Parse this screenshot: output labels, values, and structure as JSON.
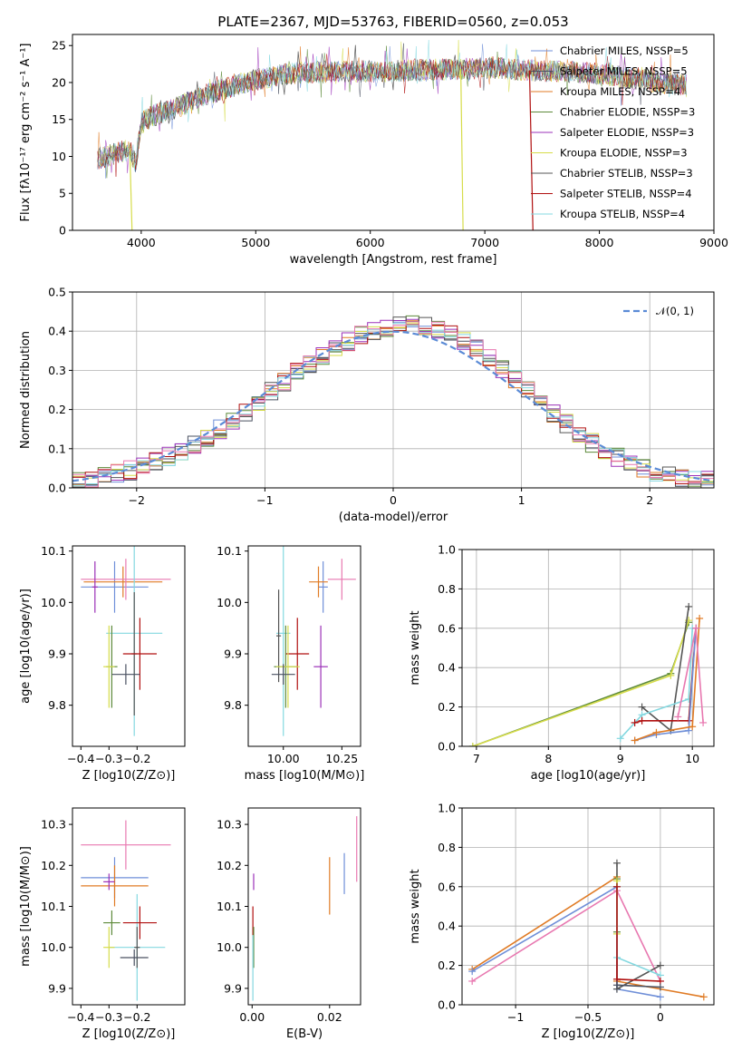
{
  "title": "PLATE=2367, MJD=53763, FIBERID=0560, z=0.053",
  "colors": {
    "Chabrier MILES": "#6f8fd8",
    "Salpeter MILES": "#4a5060",
    "Kroupa MILES": "#e07b25",
    "Chabrier ELODIE": "#5d8a3a",
    "Salpeter ELODIE": "#9b30b8",
    "Kroupa ELODIE": "#d6dc4a",
    "Chabrier STELIB": "#555555",
    "Salpeter STELIB": "#b01010",
    "Kroupa STELIB": "#84d8e0",
    "pink": "#e878b0",
    "normal_curve": "#5b8bd6"
  },
  "chart_data": [
    {
      "id": "spectrum",
      "type": "line",
      "title": "PLATE=2367, MJD=53763, FIBERID=0560, z=0.053",
      "xlabel": "wavelength [Angstrom, rest frame]",
      "ylabel": "Flux [fλ10⁻¹⁷ erg cm⁻² s⁻¹ A⁻¹]",
      "xlim": [
        3400,
        9000
      ],
      "ylim": [
        0,
        26.5
      ],
      "xticks": [
        4000,
        5000,
        6000,
        7000,
        8000,
        9000
      ],
      "yticks": [
        0,
        5,
        10,
        15,
        20,
        25
      ],
      "legend_loc": "upper right",
      "series": [
        {
          "name": "Chabrier MILES, N_SSP=5",
          "legend": "Chabrier MILES, NSSP=5"
        },
        {
          "name": "Salpeter MILES, N_SSP=5",
          "legend": "Salpeter MILES, NSSP=5"
        },
        {
          "name": "Kroupa MILES, N_SSP=4",
          "legend": "Kroupa MILES, NSSP=4"
        },
        {
          "name": "Chabrier ELODIE, N_SSP=3",
          "legend": "Chabrier ELODIE, NSSP=3"
        },
        {
          "name": "Salpeter ELODIE, N_SSP=3",
          "legend": "Salpeter ELODIE, NSSP=3"
        },
        {
          "name": "Kroupa ELODIE, N_SSP=3",
          "legend": "Kroupa ELODIE, NSSP=3"
        },
        {
          "name": "Chabrier STELIB, N_SSP=3",
          "legend": "Chabrier STELIB, NSSP=3"
        },
        {
          "name": "Salpeter STELIB, N_SSP=4",
          "legend": "Salpeter STELIB, NSSP=4"
        },
        {
          "name": "Kroupa STELIB, N_SSP=4",
          "legend": "Kroupa STELIB, NSSP=4"
        }
      ],
      "continuum": {
        "x": [
          3600,
          3700,
          3800,
          3900,
          3950,
          4000,
          4100,
          4200,
          4300,
          4500,
          4700,
          4900,
          5100,
          5300,
          5500,
          5700,
          5900,
          6100,
          6300,
          6500,
          6700,
          6900,
          7100,
          7300,
          7500,
          7700,
          7900,
          8100,
          8300,
          8500,
          8700
        ],
        "y": [
          9.5,
          10.0,
          10.5,
          11.0,
          9.0,
          14.5,
          15.5,
          16.0,
          16.5,
          18.0,
          19.0,
          20.0,
          20.7,
          21.2,
          21.4,
          21.5,
          21.5,
          21.5,
          21.6,
          21.7,
          21.8,
          21.9,
          22.0,
          21.7,
          21.6,
          21.5,
          21.3,
          21.0,
          20.5,
          20.0,
          19.7
        ]
      },
      "features": [
        {
          "series": "Kroupa ELODIE, N_SSP=3",
          "x_start": 3900,
          "x_end": 3920,
          "y": 0
        },
        {
          "series": "Kroupa ELODIE, N_SSP=3",
          "x_start": 6790,
          "x_end": 6810,
          "y": 0
        },
        {
          "series": "Salpeter STELIB, N_SSP=4",
          "x_start": 7390,
          "x_end": 7420,
          "y": 0
        }
      ]
    },
    {
      "id": "residuals",
      "type": "line",
      "xlabel": "(data-model)/error",
      "ylabel": "Normed distribution",
      "xlim": [
        -2.5,
        2.5
      ],
      "ylim": [
        0,
        0.5
      ],
      "xticks": [
        -2,
        -1,
        0,
        1,
        2
      ],
      "yticks": [
        0.0,
        0.1,
        0.2,
        0.3,
        0.4,
        0.5
      ],
      "grid": true,
      "legend_loc": "upper right",
      "normal_curve": {
        "name": "N(0,1)",
        "mean": 0,
        "sigma": 1
      },
      "bins": [
        -2.5,
        -2.4,
        -2.3,
        -2.2,
        -2.1,
        -2.0,
        -1.9,
        -1.8,
        -1.7,
        -1.6,
        -1.5,
        -1.4,
        -1.3,
        -1.2,
        -1.1,
        -1.0,
        -0.9,
        -0.8,
        -0.7,
        -0.6,
        -0.5,
        -0.4,
        -0.3,
        -0.2,
        -0.1,
        0.0,
        0.1,
        0.2,
        0.3,
        0.4,
        0.5,
        0.6,
        0.7,
        0.8,
        0.9,
        1.0,
        1.1,
        1.2,
        1.3,
        1.4,
        1.5,
        1.6,
        1.7,
        1.8,
        1.9,
        2.0,
        2.1,
        2.2,
        2.3,
        2.4,
        2.5
      ],
      "histogram_envelope": [
        0.02,
        0.025,
        0.03,
        0.035,
        0.045,
        0.055,
        0.065,
        0.08,
        0.095,
        0.11,
        0.13,
        0.15,
        0.17,
        0.195,
        0.22,
        0.245,
        0.27,
        0.295,
        0.315,
        0.34,
        0.36,
        0.375,
        0.39,
        0.4,
        0.41,
        0.42,
        0.42,
        0.415,
        0.405,
        0.395,
        0.375,
        0.355,
        0.33,
        0.305,
        0.28,
        0.25,
        0.22,
        0.19,
        0.165,
        0.14,
        0.115,
        0.095,
        0.08,
        0.065,
        0.05,
        0.04,
        0.035,
        0.028,
        0.022,
        0.018
      ]
    },
    {
      "id": "age-vs-Z",
      "type": "scatter",
      "xlabel": "Z [log10(Z/Z⊙)]",
      "ylabel": "age [log10(age/yr)]",
      "xlim": [
        -0.43,
        -0.03
      ],
      "ylim": [
        9.72,
        10.11
      ],
      "xticks": [
        -0.4,
        -0.3,
        -0.2
      ],
      "yticks": [
        9.8,
        9.9,
        10.0,
        10.1
      ],
      "points": [
        {
          "series": "Chabrier MILES, N_SSP=5",
          "x": -0.28,
          "y": 10.03,
          "xerr": 0.12,
          "yerr": 0.05
        },
        {
          "series": "Kroupa MILES, N_SSP=4",
          "x": -0.25,
          "y": 10.04,
          "xerr": 0.14,
          "yerr": 0.03
        },
        {
          "series": "pink",
          "x": -0.24,
          "y": 10.045,
          "xerr": 0.16,
          "yerr": 0.04
        },
        {
          "series": "Salpeter ELODIE, N_SSP=3",
          "x": -0.35,
          "y": 10.03,
          "xerr": 0.01,
          "yerr": 0.05
        },
        {
          "series": "Kroupa STELIB, N_SSP=4",
          "x": -0.21,
          "y": 9.94,
          "xerr": 0.1,
          "yerr": 0.2
        },
        {
          "series": "Chabrier STELIB, N_SSP=3",
          "x": -0.21,
          "y": 9.9,
          "xerr": 0.01,
          "yerr": 0.12
        },
        {
          "series": "Salpeter STELIB, N_SSP=4",
          "x": -0.19,
          "y": 9.9,
          "xerr": 0.06,
          "yerr": 0.07
        },
        {
          "series": "Chabrier ELODIE, N_SSP=3",
          "x": -0.29,
          "y": 9.875,
          "xerr": 0.02,
          "yerr": 0.08
        },
        {
          "series": "Kroupa ELODIE, N_SSP=3",
          "x": -0.3,
          "y": 9.875,
          "xerr": 0.02,
          "yerr": 0.08
        },
        {
          "series": "Salpeter MILES, N_SSP=5",
          "x": -0.24,
          "y": 9.86,
          "xerr": 0.05,
          "yerr": 0.02
        }
      ]
    },
    {
      "id": "age-vs-mass",
      "type": "scatter",
      "xlabel": "mass [log10(M/M⊙)]",
      "ylabel": "",
      "xlim": [
        9.85,
        10.33
      ],
      "ylim": [
        9.72,
        10.11
      ],
      "xticks": [
        10.0,
        10.25
      ],
      "xticklabels": [
        "10.00",
        "10.25"
      ],
      "yticks": [
        9.8,
        9.9,
        10.0,
        10.1
      ],
      "points": [
        {
          "series": "Chabrier MILES, N_SSP=5",
          "x": 10.17,
          "y": 10.03,
          "xerr": 0.02,
          "yerr": 0.05
        },
        {
          "series": "Kroupa MILES, N_SSP=4",
          "x": 10.15,
          "y": 10.04,
          "xerr": 0.04,
          "yerr": 0.03
        },
        {
          "series": "pink",
          "x": 10.25,
          "y": 10.045,
          "xerr": 0.06,
          "yerr": 0.04
        },
        {
          "series": "Kroupa STELIB, N_SSP=4",
          "x": 10.0,
          "y": 9.94,
          "xerr": 0.03,
          "yerr": 0.2
        },
        {
          "series": "Chabrier STELIB, N_SSP=3",
          "x": 9.98,
          "y": 9.935,
          "xerr": 0.01,
          "yerr": 0.09
        },
        {
          "series": "Salpeter STELIB, N_SSP=4",
          "x": 10.06,
          "y": 9.9,
          "xerr": 0.05,
          "yerr": 0.07
        },
        {
          "series": "Chabrier ELODIE, N_SSP=3",
          "x": 10.01,
          "y": 9.875,
          "xerr": 0.05,
          "yerr": 0.08
        },
        {
          "series": "Kroupa ELODIE, N_SSP=3",
          "x": 10.02,
          "y": 9.875,
          "xerr": 0.05,
          "yerr": 0.08
        },
        {
          "series": "Salpeter ELODIE, N_SSP=3",
          "x": 10.16,
          "y": 9.875,
          "xerr": 0.03,
          "yerr": 0.08
        },
        {
          "series": "Salpeter MILES, N_SSP=5",
          "x": 10.0,
          "y": 9.86,
          "xerr": 0.05,
          "yerr": 0.02
        }
      ]
    },
    {
      "id": "mass-weight-vs-age",
      "type": "line",
      "xlabel": "age [log10(age/yr)]",
      "ylabel": "mass weight",
      "xlim": [
        6.8,
        10.3
      ],
      "ylim": [
        0,
        1.0
      ],
      "xticks": [
        7,
        8,
        9,
        10
      ],
      "yticks": [
        0.0,
        0.2,
        0.4,
        0.6,
        0.8,
        1.0
      ],
      "grid": true,
      "series": [
        {
          "name": "Chabrier ELODIE, N_SSP=3",
          "x": [
            6.95,
            9.7,
            9.95
          ],
          "y": [
            0.0,
            0.37,
            0.63
          ]
        },
        {
          "name": "Kroupa ELODIE, N_SSP=3",
          "x": [
            6.95,
            9.7,
            9.95
          ],
          "y": [
            0.0,
            0.36,
            0.64
          ]
        },
        {
          "name": "Chabrier STELIB, N_SSP=3",
          "x": [
            9.3,
            9.7,
            9.95
          ],
          "y": [
            0.2,
            0.08,
            0.71
          ]
        },
        {
          "name": "Kroupa STELIB, N_SSP=4",
          "x": [
            9.0,
            9.3,
            9.95,
            10.0
          ],
          "y": [
            0.04,
            0.16,
            0.24,
            0.6
          ]
        },
        {
          "name": "Salpeter STELIB, N_SSP=4",
          "x": [
            9.2,
            9.3,
            9.95,
            10.05
          ],
          "y": [
            0.12,
            0.13,
            0.13,
            0.6
          ]
        },
        {
          "name": "Chabrier MILES, N_SSP=5",
          "x": [
            9.2,
            9.5,
            9.95,
            10.05
          ],
          "y": [
            0.03,
            0.06,
            0.08,
            0.6
          ]
        },
        {
          "name": "Kroupa MILES, N_SSP=4",
          "x": [
            9.2,
            9.5,
            10.0,
            10.1
          ],
          "y": [
            0.03,
            0.07,
            0.1,
            0.65
          ]
        },
        {
          "name": "pink",
          "x": [
            9.8,
            10.05,
            10.15
          ],
          "y": [
            0.15,
            0.6,
            0.12
          ]
        }
      ]
    },
    {
      "id": "mass-vs-Z",
      "type": "scatter",
      "xlabel": "Z [log10(Z/Z⊙)]",
      "ylabel": "mass [log10(M/M⊙)]",
      "xlim": [
        -0.43,
        -0.03
      ],
      "ylim": [
        9.86,
        10.34
      ],
      "xticks": [
        -0.4,
        -0.3,
        -0.2
      ],
      "yticks": [
        9.9,
        10.0,
        10.1,
        10.2,
        10.3
      ],
      "points": [
        {
          "series": "pink",
          "x": -0.24,
          "y": 10.25,
          "xerr": 0.16,
          "yerr": 0.06
        },
        {
          "series": "Chabrier MILES, N_SSP=5",
          "x": -0.28,
          "y": 10.17,
          "xerr": 0.12,
          "yerr": 0.05
        },
        {
          "series": "Kroupa MILES, N_SSP=4",
          "x": -0.28,
          "y": 10.15,
          "xerr": 0.12,
          "yerr": 0.05
        },
        {
          "series": "Salpeter ELODIE, N_SSP=3",
          "x": -0.3,
          "y": 10.16,
          "xerr": 0.02,
          "yerr": 0.02
        },
        {
          "series": "Kroupa STELIB, N_SSP=4",
          "x": -0.2,
          "y": 10.0,
          "xerr": 0.1,
          "yerr": 0.13
        },
        {
          "series": "Chabrier STELIB, N_SSP=3",
          "x": -0.2,
          "y": 10.0,
          "xerr": 0.01,
          "yerr": 0.05
        },
        {
          "series": "Salpeter STELIB, N_SSP=4",
          "x": -0.19,
          "y": 10.06,
          "xerr": 0.06,
          "yerr": 0.04
        },
        {
          "series": "Chabrier ELODIE, N_SSP=3",
          "x": -0.29,
          "y": 10.06,
          "xerr": 0.03,
          "yerr": 0.03
        },
        {
          "series": "Kroupa ELODIE, N_SSP=3",
          "x": -0.3,
          "y": 10.0,
          "xerr": 0.02,
          "yerr": 0.05
        },
        {
          "series": "Salpeter MILES, N_SSP=5",
          "x": -0.21,
          "y": 9.975,
          "xerr": 0.05,
          "yerr": 0.02
        }
      ]
    },
    {
      "id": "mass-vs-EBV",
      "type": "scatter",
      "xlabel": "E(B-V)",
      "ylabel": "",
      "xlim": [
        -0.001,
        0.028
      ],
      "ylim": [
        9.86,
        10.34
      ],
      "xticks": [
        0.0,
        0.02
      ],
      "xticklabels": [
        "0.00",
        "0.02"
      ],
      "yticks": [
        9.9,
        10.0,
        10.1,
        10.2,
        10.3
      ],
      "points": [
        {
          "series": "Salpeter ELODIE, N_SSP=3",
          "x": 0.0004,
          "y": 10.16,
          "xerr": 0,
          "yerr": 0.02
        },
        {
          "series": "Salpeter STELIB, N_SSP=4",
          "x": 0.0002,
          "y": 10.06,
          "xerr": 0,
          "yerr": 0.04
        },
        {
          "series": "Chabrier ELODIE, N_SSP=3",
          "x": 0.0004,
          "y": 10.0,
          "xerr": 0,
          "yerr": 0.05
        },
        {
          "series": "Kroupa STELIB, N_SSP=4",
          "x": 0.0002,
          "y": 9.95,
          "xerr": 0,
          "yerr": 0.08
        },
        {
          "series": "Kroupa MILES, N_SSP=4",
          "x": 0.02,
          "y": 10.15,
          "xerr": 0,
          "yerr": 0.07
        },
        {
          "series": "Chabrier MILES, N_SSP=5",
          "x": 0.0238,
          "y": 10.18,
          "xerr": 0,
          "yerr": 0.05
        },
        {
          "series": "pink",
          "x": 0.027,
          "y": 10.24,
          "xerr": 0,
          "yerr": 0.08
        }
      ]
    },
    {
      "id": "mass-weight-vs-Z",
      "type": "line",
      "xlabel": "Z [log10(Z/Z⊙)]",
      "ylabel": "mass weight",
      "xlim": [
        -1.37,
        0.37
      ],
      "ylim": [
        0,
        1.0
      ],
      "xticks": [
        -1.0,
        -0.5,
        0.0
      ],
      "yticks": [
        0.0,
        0.2,
        0.4,
        0.6,
        0.8,
        1.0
      ],
      "grid": true,
      "series": [
        {
          "name": "Kroupa MILES, N_SSP=4",
          "x": [
            -1.3,
            -0.3,
            -0.3,
            0.3
          ],
          "y": [
            0.18,
            0.65,
            0.12,
            0.04
          ]
        },
        {
          "name": "Chabrier MILES, N_SSP=5",
          "x": [
            -1.3,
            -0.3,
            -0.3,
            0.0
          ],
          "y": [
            0.17,
            0.6,
            0.08,
            0.04
          ]
        },
        {
          "name": "pink",
          "x": [
            -1.3,
            -0.3,
            0.0
          ],
          "y": [
            0.12,
            0.58,
            0.12
          ]
        },
        {
          "name": "Chabrier STELIB, N_SSP=3",
          "x": [
            -0.3,
            -0.3,
            0.0
          ],
          "y": [
            0.72,
            0.08,
            0.2
          ]
        },
        {
          "name": "Chabrier ELODIE, N_SSP=3",
          "x": [
            -0.3,
            -0.3
          ],
          "y": [
            0.64,
            0.37
          ]
        },
        {
          "name": "Kroupa ELODIE, N_SSP=3",
          "x": [
            -0.3,
            -0.3
          ],
          "y": [
            0.63,
            0.36
          ]
        },
        {
          "name": "Kroupa STELIB, N_SSP=4",
          "x": [
            -0.3,
            -0.3,
            0.0
          ],
          "y": [
            0.6,
            0.24,
            0.15
          ]
        },
        {
          "name": "Salpeter STELIB, N_SSP=4",
          "x": [
            -0.3,
            -0.3,
            0.0
          ],
          "y": [
            0.6,
            0.13,
            0.12
          ]
        },
        {
          "name": "Salpeter MILES, N_SSP=5",
          "x": [
            -0.3,
            0.0
          ],
          "y": [
            0.1,
            0.09
          ]
        }
      ]
    }
  ]
}
